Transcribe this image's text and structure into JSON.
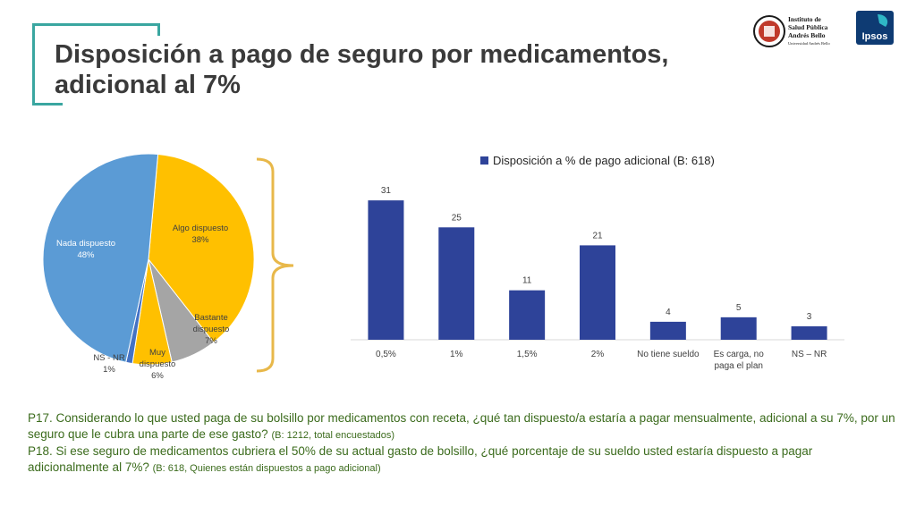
{
  "title": "Disposición a pago de seguro por medicamentos, adicional al 7%",
  "logos": {
    "institute_line1": "Instituto de",
    "institute_line2": "Salud Pública",
    "institute_line3": "Andrés Bello",
    "institute_sub": "Universidad Andrés Bello",
    "ipsos": "Ipsos"
  },
  "chart_data": [
    {
      "type": "pie",
      "slices": [
        {
          "label": "Algo dispuesto",
          "pct_label": "38%",
          "value": 38,
          "color": "#ffc000"
        },
        {
          "label": "Bastante dispuesto",
          "pct_label": "7%",
          "value": 7,
          "color": "#a5a5a5"
        },
        {
          "label": "Muy dispuesto",
          "pct_label": "6%",
          "value": 6,
          "color": "#ffc000"
        },
        {
          "label": "NS - NR",
          "pct_label": "1%",
          "value": 1,
          "color": "#4472c4"
        },
        {
          "label": "Nada dispuesto",
          "pct_label": "48%",
          "value": 48,
          "color": "#5b9bd5"
        }
      ]
    },
    {
      "type": "bar",
      "legend": "Disposición a % de pago adicional (B: 618)",
      "categories": [
        "0,5%",
        "1%",
        "1,5%",
        "2%",
        "No tiene sueldo",
        "Es carga, no paga el plan",
        "NS – NR"
      ],
      "values": [
        31,
        25,
        11,
        21,
        4,
        5,
        3
      ],
      "color": "#2e4399",
      "ylim": [
        0,
        35
      ]
    }
  ],
  "question": {
    "p17": "P17. Considerando lo que usted paga de su bolsillo por medicamentos con receta, ¿qué tan dispuesto/a estaría a pagar mensualmente, adicional a su 7%, por un seguro que le cubra una parte de ese gasto?",
    "p17_base": "(B: 1212, total encuestados)",
    "p18": "P18. Si ese seguro de medicamentos cubriera el 50% de su actual gasto de bolsillo, ¿qué porcentaje de su sueldo usted estaría dispuesto a pagar adicionalmente al 7%?",
    "p18_base": "(B: 618, Quienes están dispuestos a pago adicional)"
  }
}
